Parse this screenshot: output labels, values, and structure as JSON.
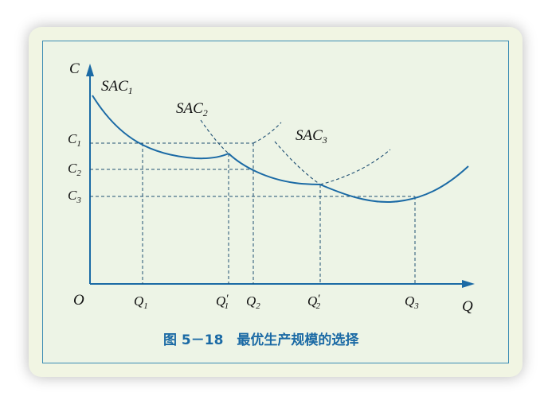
{
  "figure": {
    "caption": "图 5－18　最优生产规模的选择",
    "colors": {
      "curve": "#1b6aa5",
      "dash": "#1f4f73",
      "text": "#111111",
      "caption": "#1b6aa5",
      "panel": "#edf4e6",
      "border": "#3a8bb3"
    }
  },
  "axes": {
    "y_label": "C",
    "x_label": "Q",
    "origin": "O"
  },
  "curves": [
    {
      "label": "SAC",
      "sub": "1"
    },
    {
      "label": "SAC",
      "sub": "2"
    },
    {
      "label": "SAC",
      "sub": "3"
    }
  ],
  "y_ticks": [
    {
      "label": "C",
      "sub": "1"
    },
    {
      "label": "C",
      "sub": "2"
    },
    {
      "label": "C",
      "sub": "3"
    }
  ],
  "x_ticks": [
    {
      "label": "Q",
      "sub": "1",
      "prime": ""
    },
    {
      "label": "Q",
      "sub": "1",
      "prime": "′"
    },
    {
      "label": "Q",
      "sub": "2",
      "prime": ""
    },
    {
      "label": "Q",
      "sub": "2",
      "prime": "′"
    },
    {
      "label": "Q",
      "sub": "3",
      "prime": ""
    }
  ]
}
